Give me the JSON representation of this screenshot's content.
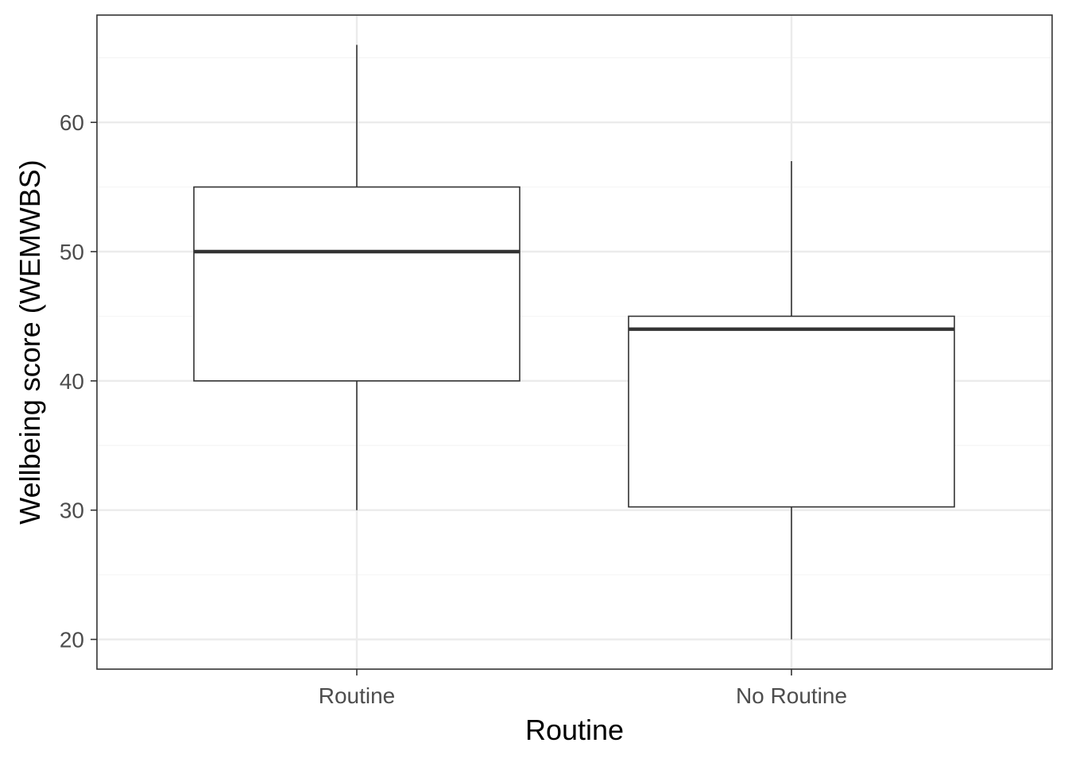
{
  "chart_data": {
    "type": "boxplot",
    "xlabel": "Routine",
    "ylabel": "Wellbeing score (WEMWBS)",
    "categories": [
      "Routine",
      "No Routine"
    ],
    "boxes": [
      {
        "category": "Routine",
        "whisker_low": 30,
        "q1": 40,
        "median": 50,
        "q3": 55,
        "whisker_high": 66
      },
      {
        "category": "No Routine",
        "whisker_low": 20,
        "q1": 30.25,
        "median": 44,
        "q3": 45,
        "whisker_high": 57
      }
    ],
    "ylim": [
      17.7,
      68.3
    ],
    "y_ticks": [
      20,
      30,
      40,
      50,
      60
    ],
    "y_minor_ticks": [
      25,
      35,
      45,
      55,
      65
    ],
    "grid": true,
    "theme": "black-and-white",
    "colors": {
      "panel_border": "#333333",
      "grid_major": "#ebebeb",
      "grid_minor": "#f5f5f5",
      "box_line": "#333333",
      "box_fill": "#ffffff",
      "tick_label": "#4d4d4d",
      "axis_title": "#000000"
    }
  }
}
